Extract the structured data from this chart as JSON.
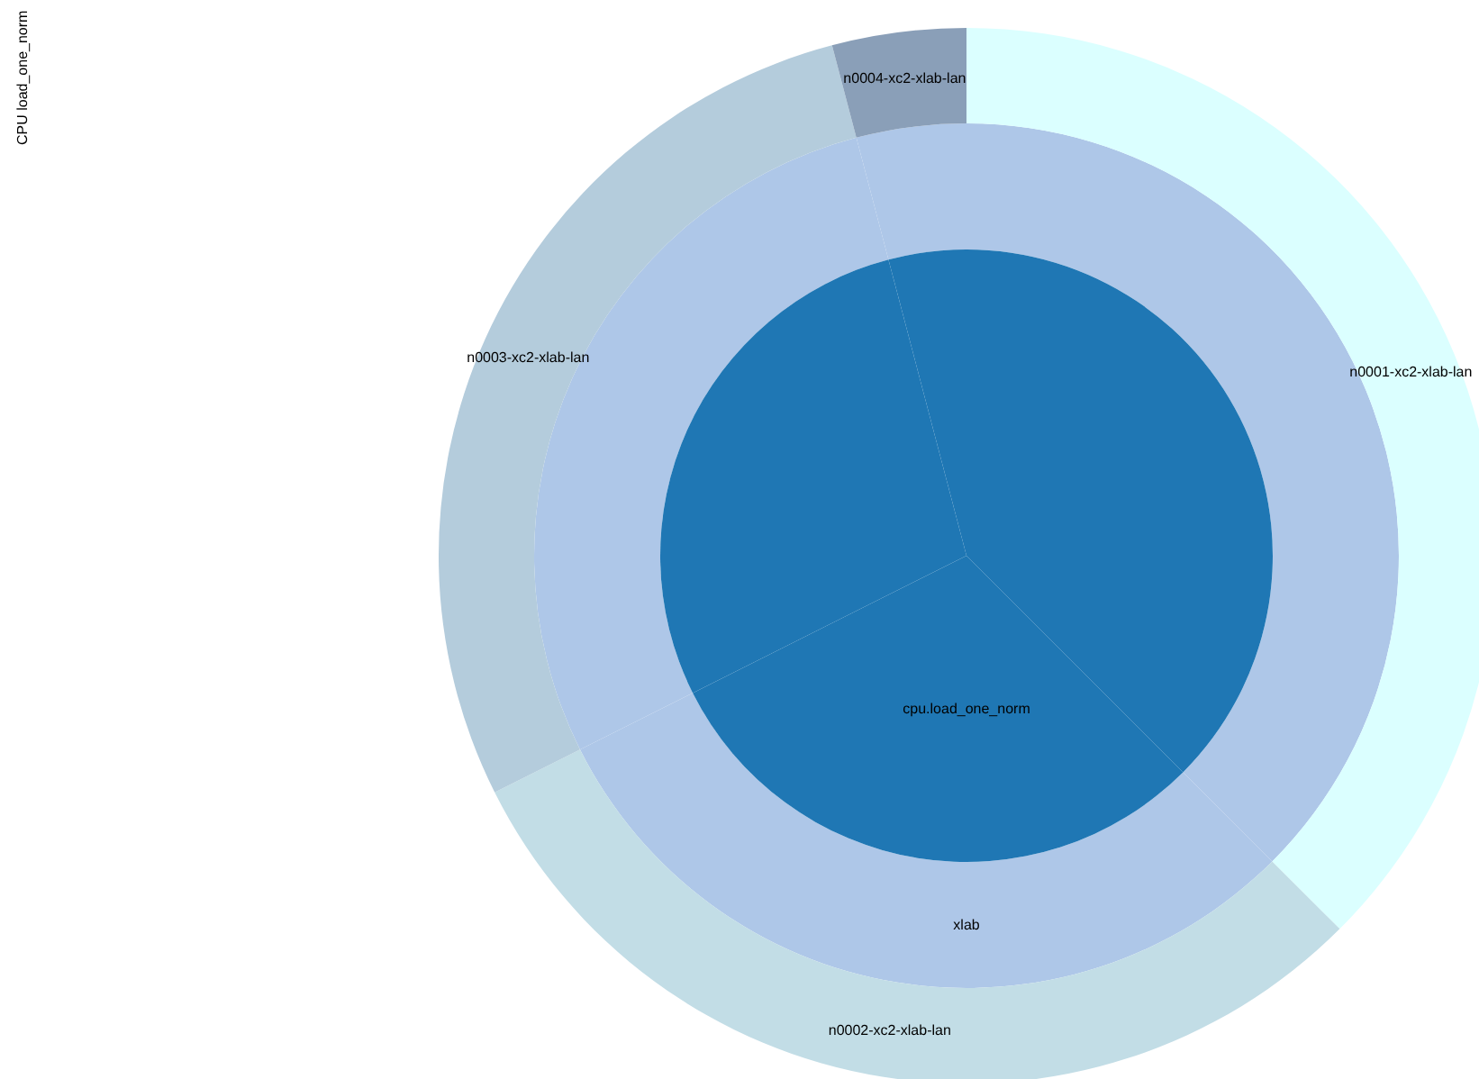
{
  "chart_data": {
    "type": "donut",
    "title": "CPU load_one_norm",
    "categories": [
      "n0001-xc2-xlab-lan",
      "n0002-xc2-xlab-lan",
      "n0003-xc2-xlab-lan",
      "n0004-xc2-xlab-lan"
    ],
    "series": [
      {
        "name": "xlab",
        "color": "#aec7e8",
        "values": [
          37.5,
          30.1,
          28.3,
          4.1
        ]
      },
      {
        "values": [
          37.5,
          30.1,
          28.3,
          4.1
        ],
        "colors": [
          "#dbffff",
          "#c2dde6",
          "#b4ccdc",
          "#8a9fb8"
        ]
      },
      {
        "type": "pie",
        "name": "cpu.load_one_norm",
        "color": "#1f77b4",
        "values": [
          37.5,
          30.1,
          28.3,
          4.1
        ]
      }
    ]
  }
}
